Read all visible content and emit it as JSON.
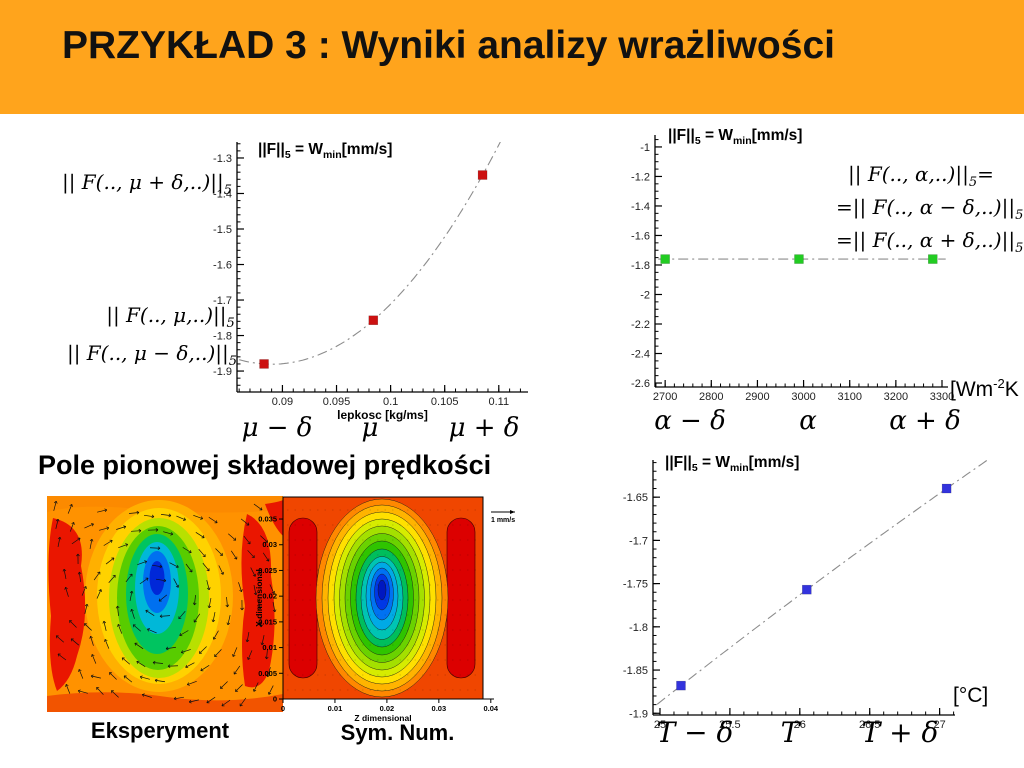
{
  "header": {
    "title": "PRZYKŁAD 3 : Wyniki analizy wrażliwości"
  },
  "section_heading": "Pole pionowej składowej prędkości",
  "captions": {
    "experiment": "Eksperyment",
    "simulation": "Sym. Num."
  },
  "units": {
    "heat_transfer": {
      "pre": "[Wm",
      "sup": "-2",
      "post": "K"
    },
    "temperature": "[°C]"
  },
  "formulas": {
    "mu_plus": {
      "body": "|| F(.., μ + δ,..)||",
      "sub": "5",
      "post": ""
    },
    "mu_mid": {
      "body": "|| F(.., μ,..)||",
      "sub": "5",
      "post": ""
    },
    "mu_minus": {
      "body": "|| F(.., μ − δ,..)||",
      "sub": "5",
      "post": ""
    },
    "alpha_1": {
      "body": "|| F(.., α,..)||",
      "sub": "5",
      "post": "="
    },
    "alpha_2": {
      "body": "=|| F(.., α − δ,..)||",
      "sub": "5",
      "post": ""
    },
    "alpha_3": {
      "body": "=|| F(.., α + δ,..)||",
      "sub": "5",
      "post": ""
    }
  },
  "chart_data": [
    {
      "id": "viscosity",
      "type": "scatter",
      "title": {
        "p1": "||F||",
        "s1": "5",
        "p2": " = W",
        "s2": "min",
        "p3": "[mm/s]"
      },
      "xlabel": "lepkosc [kg/ms]",
      "x": [
        0.0883,
        0.0984,
        0.1085
      ],
      "y": [
        -1.88,
        -1.757,
        -1.348
      ],
      "marker_color": "#CC1111",
      "xlim": [
        0.0858,
        0.1127
      ],
      "ylim": [
        -1.959,
        -1.255
      ],
      "xticks": [
        0.09,
        0.095,
        0.1,
        0.105,
        0.11
      ],
      "xtick_labels": [
        "0.09",
        "0.095",
        "0.1",
        "0.105",
        "0.11"
      ],
      "x_minor": 0.001,
      "yticks": [
        -1.3,
        -1.4,
        -1.5,
        -1.6,
        -1.7,
        -1.8,
        -1.9
      ],
      "ytick_labels": [
        "-1.3",
        "-1.4",
        "-1.5",
        "-1.6",
        "-1.7",
        "-1.8",
        "-1.9"
      ],
      "y_minor": 0.02,
      "curve_range": [
        0.086,
        0.1125
      ],
      "param_labels": [
        "μ − δ",
        "μ",
        "μ + δ"
      ]
    },
    {
      "id": "alpha",
      "type": "scatter",
      "title": {
        "p1": "||F||",
        "s1": "5",
        "p2": " = W",
        "s2": "min",
        "p3": "[mm/s]"
      },
      "xlabel": "",
      "x": [
        2700,
        2990,
        3280
      ],
      "y": [
        -1.76,
        -1.76,
        -1.76
      ],
      "marker_color": "#22CC22",
      "xlim": [
        2678,
        3313
      ],
      "ylim": [
        -2.627,
        -0.919
      ],
      "xticks": [
        2700,
        2800,
        2900,
        3000,
        3100,
        3200,
        3300
      ],
      "xtick_labels": [
        "2700",
        "2800",
        "2900",
        "3000",
        "3100",
        "3200",
        "3300"
      ],
      "x_minor": 20,
      "yticks": [
        -1,
        -1.2,
        -1.4,
        -1.6,
        -1.8,
        -2,
        -2.2,
        -2.4,
        -2.6
      ],
      "ytick_labels": [
        "-1",
        "-1.2",
        "-1.4",
        "-1.6",
        "-1.8",
        "-2",
        "-2.2",
        "-2.4",
        "-2.6"
      ],
      "y_minor": 0.05,
      "curve_range": [
        2685,
        3308
      ],
      "param_labels": [
        "α − δ",
        "α",
        "α + δ"
      ]
    },
    {
      "id": "temperature",
      "type": "scatter",
      "title": {
        "p1": "||F||",
        "s1": "5",
        "p2": " = W",
        "s2": "min",
        "p3": "[mm/s]"
      },
      "xlabel": "",
      "x": [
        25.15,
        26.05,
        27.05
      ],
      "y": [
        -1.868,
        -1.757,
        -1.64
      ],
      "marker_color": "#3333DD",
      "xlim": [
        24.95,
        27.11
      ],
      "ylim": [
        -1.902,
        -1.607
      ],
      "xticks": [
        25,
        25.5,
        26,
        26.5,
        27
      ],
      "xtick_labels": [
        "25",
        "25.5",
        "26",
        "26.5",
        "27"
      ],
      "x_minor": 0.1,
      "yticks": [
        -1.65,
        -1.7,
        -1.75,
        -1.8,
        -1.85,
        -1.9
      ],
      "ytick_labels": [
        "-1.65",
        "-1.7",
        "-1.75",
        "-1.8",
        "-1.85",
        "-1.9"
      ],
      "y_minor": 0.01,
      "curve_range": [
        24.98,
        27.5
      ],
      "param_labels": [
        "T − δ",
        "T",
        "T + δ"
      ]
    },
    {
      "id": "experiment",
      "type": "contour",
      "caption": "Eksperyment",
      "palette": [
        "#EA1600",
        "#FF9200",
        "#FFD200",
        "#B8E000",
        "#58CC00",
        "#00C460",
        "#00B8D8",
        "#0070F0",
        "#0028D8"
      ]
    },
    {
      "id": "sym_num",
      "type": "contour",
      "caption": "Sym. Num.",
      "xlabel": "Z dimensional",
      "ylabel": "X dimensional",
      "xticks": [
        0,
        0.01,
        0.02,
        0.03,
        0.04
      ],
      "xtick_labels": [
        "0",
        "0.01",
        "0.02",
        "0.03",
        "0.04"
      ],
      "yticks": [
        0,
        0.005,
        0.01,
        0.015,
        0.02,
        0.025,
        0.03,
        0.035
      ],
      "ytick_labels": [
        "0",
        "0.005",
        "0.01",
        "0.015",
        "0.02",
        "0.025",
        "0.03",
        "0.035"
      ],
      "legend": "1 mm/s",
      "palette": [
        "#DC0000",
        "#F04600",
        "#FF8800",
        "#FFB400",
        "#FFE000",
        "#D6EC00",
        "#A4E000",
        "#6AD200",
        "#2FC400",
        "#00BE5C",
        "#00C4B4",
        "#00AAE6",
        "#0072F2",
        "#0038E6",
        "#0018C0"
      ]
    }
  ]
}
